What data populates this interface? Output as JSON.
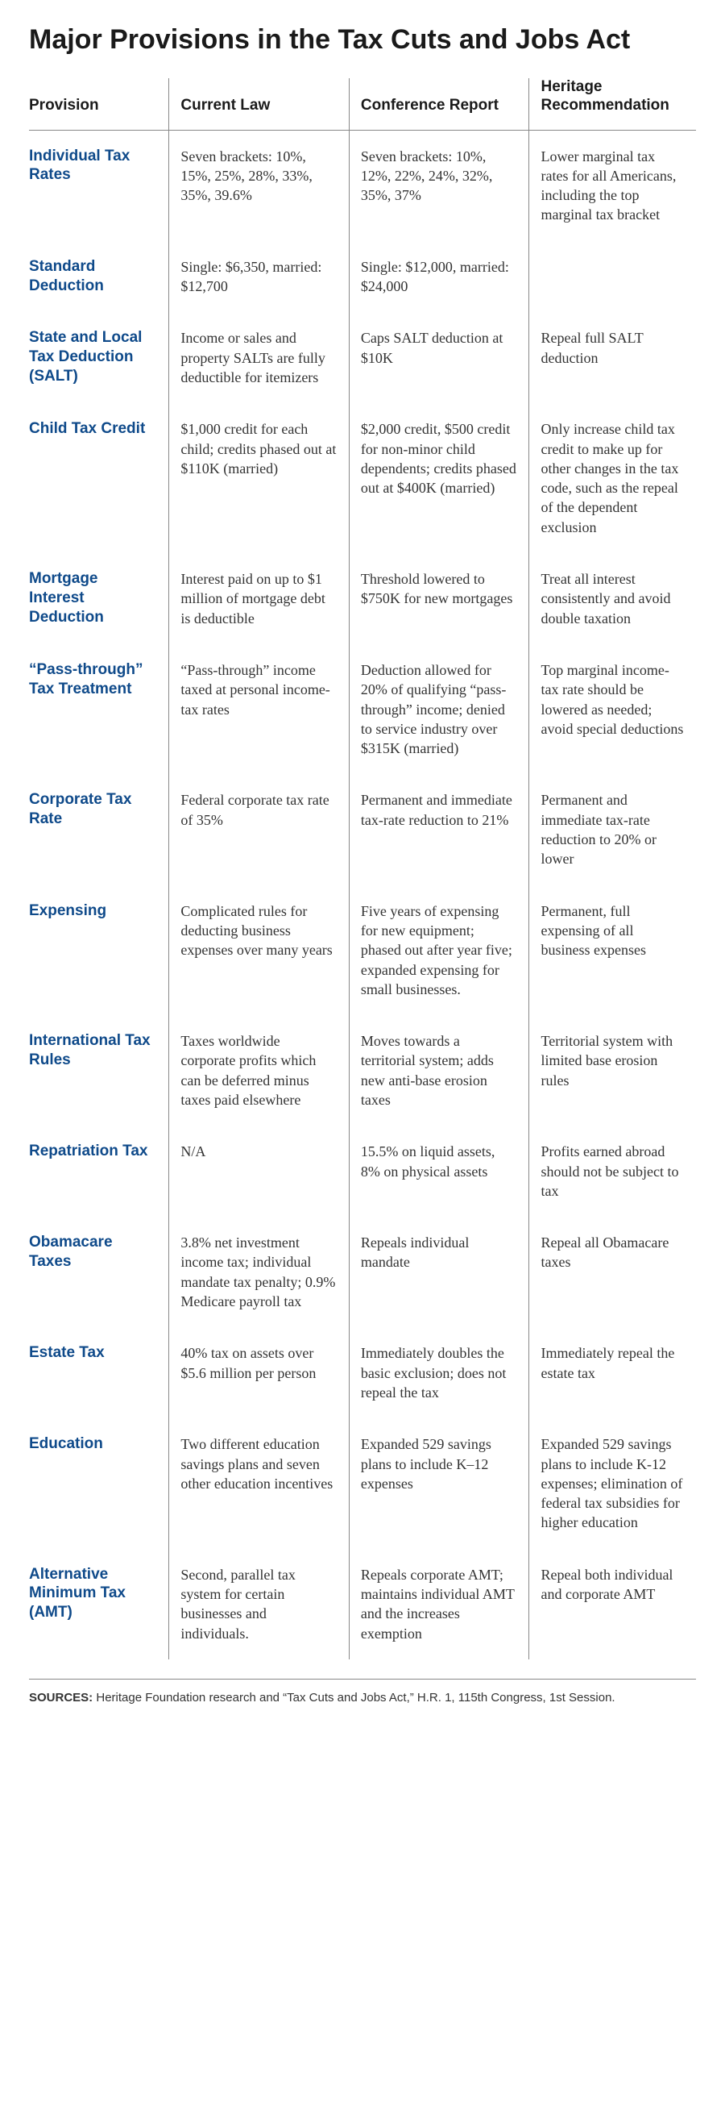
{
  "title": "Major Provisions in the Tax Cuts and Jobs Act",
  "columns": [
    "Provision",
    "Current Law",
    "Conference Report",
    "Heritage Recommendation"
  ],
  "rows": [
    {
      "provision": "Individual Tax Rates",
      "current": "Seven brackets: 10%, 15%, 25%, 28%, 33%, 35%, 39.6%",
      "report": "Seven brackets: 10%, 12%, 22%, 24%, 32%, 35%, 37%",
      "heritage": "Lower marginal tax rates for all Americans, including the top marginal tax bracket"
    },
    {
      "provision": "Standard Deduction",
      "current": "Single: $6,350, married: $12,700",
      "report": "Single: $12,000, married: $24,000",
      "heritage": ""
    },
    {
      "provision": "State and Local Tax Deduction (SALT)",
      "current": "Income or sales and property SALTs are fully deductible for itemizers",
      "report": "Caps SALT deduction at $10K",
      "heritage": "Repeal full SALT deduction"
    },
    {
      "provision": "Child Tax Credit",
      "current": "$1,000 credit for each child; credits phased out at $110K (married)",
      "report": "$2,000 credit, $500 credit for non-minor child dependents; credits phased out at $400K (married)",
      "heritage": "Only increase child tax credit to make up for other changes in the tax code, such as the repeal of the dependent exclusion"
    },
    {
      "provision": "Mortgage Interest Deduction",
      "current": "Interest paid on up to $1 million of mortgage debt is deductible",
      "report": "Threshold lowered to $750K for new mortgages",
      "heritage": "Treat all interest consistently and avoid double taxation"
    },
    {
      "provision": "“Pass-through” Tax Treatment",
      "current": "“Pass-through” income taxed at personal income-tax rates",
      "report": "Deduction allowed for 20% of qualifying “pass-through” income; denied to service industry over $315K (married)",
      "heritage": "Top marginal income-tax rate should be lowered as needed; avoid special deductions"
    },
    {
      "provision": "Corporate Tax Rate",
      "current": "Federal corporate tax rate of 35%",
      "report": "Permanent and immediate tax-rate reduction to 21%",
      "heritage": "Permanent and immediate tax-rate reduction to 20% or lower"
    },
    {
      "provision": "Expensing",
      "current": "Complicated rules for deducting business expenses over many years",
      "report": "Five years of expensing for new equipment; phased out after year five; expanded expensing for small businesses.",
      "heritage": "Permanent, full expensing of all business expenses"
    },
    {
      "provision": "International Tax Rules",
      "current": "Taxes worldwide corporate profits which can be deferred minus taxes paid elsewhere",
      "report": "Moves towards a territorial system; adds new anti-base erosion taxes",
      "heritage": "Territorial system with limited base erosion rules"
    },
    {
      "provision": "Repatriation Tax",
      "current": "N/A",
      "report": "15.5% on liquid assets, 8% on physical assets",
      "heritage": "Profits earned abroad should not be subject to tax"
    },
    {
      "provision": "Obamacare Taxes",
      "current": "3.8% net investment income tax; individual mandate tax penalty; 0.9% Medicare payroll tax",
      "report": "Repeals individual mandate",
      "heritage": "Repeal all Obamacare taxes"
    },
    {
      "provision": "Estate Tax",
      "current": "40% tax on assets over $5.6 million per person",
      "report": "Immediately doubles the basic exclusion; does not repeal the tax",
      "heritage": "Immediately repeal the estate tax"
    },
    {
      "provision": "Education",
      "current": "Two different education savings plans and seven other education incentives",
      "report": "Expanded 529 savings plans to include K–12 expenses",
      "heritage": "Expanded 529 savings plans to include K-12 expenses; elimination of federal tax subsidies for higher education"
    },
    {
      "provision": "Alternative Minimum Tax (AMT)",
      "current": "Second, parallel tax system for certain businesses and individuals.",
      "report": "Repeals corporate AMT; maintains individual AMT and the increases exemption",
      "heritage": "Repeal both individual and corporate AMT"
    }
  ],
  "sources_label": "SOURCES:",
  "sources_text": " Heritage Foundation research and “Tax Cuts and Jobs Act,” H.R. 1, 115th Congress, 1st Session.",
  "style": {
    "type": "table",
    "background_color": "#ffffff",
    "title_color": "#1a1a1a",
    "title_fontsize": 34,
    "header_fontsize": 19,
    "header_color": "#1a1a1a",
    "provision_color": "#0f4a8a",
    "provision_fontsize": 19,
    "body_color": "#333333",
    "body_fontsize": 18,
    "rule_color": "#888888",
    "col_widths_pct": [
      21,
      27,
      27,
      25
    ],
    "row_padding_v": 20,
    "cell_padding_h": 14,
    "sources_fontsize": 15,
    "font_heading": "Arial, Helvetica, sans-serif",
    "font_body": "Georgia, serif"
  }
}
